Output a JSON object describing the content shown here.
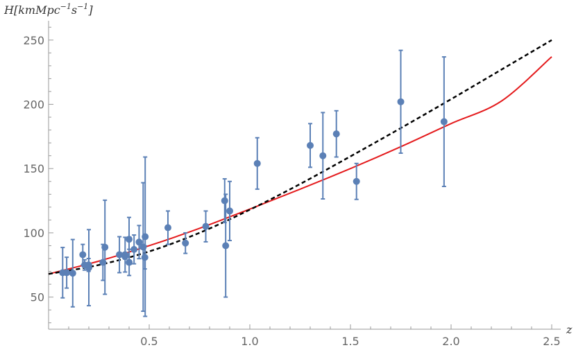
{
  "chart_data": {
    "type": "scatter",
    "ylabel_parts": {
      "base": "H[kmMpc",
      "exp1": "−1",
      "mid": "s",
      "exp2": "−1",
      "close": "]"
    },
    "xlabel": "z",
    "xlim": [
      0,
      2.5
    ],
    "ylim": [
      25,
      265
    ],
    "x_ticks": [
      0.5,
      1.0,
      1.5,
      2.0,
      2.5
    ],
    "x_tick_labels": [
      "0.5",
      "1.0",
      "1.5",
      "2.0",
      "2.5"
    ],
    "y_ticks": [
      50,
      100,
      150,
      200,
      250
    ],
    "y_tick_labels": [
      "50",
      "100",
      "150",
      "200",
      "250"
    ],
    "grid": false,
    "colors": {
      "points": "#5b80b6",
      "red_curve": "#e41a1c",
      "dashed_curve": "#000000",
      "axis": "#9a9a9a"
    },
    "points": [
      {
        "x": 0.07,
        "y": 69,
        "err": 19.6
      },
      {
        "x": 0.09,
        "y": 69,
        "err": 12
      },
      {
        "x": 0.12,
        "y": 68.6,
        "err": 26.2
      },
      {
        "x": 0.17,
        "y": 83,
        "err": 8
      },
      {
        "x": 0.179,
        "y": 75,
        "err": 4
      },
      {
        "x": 0.199,
        "y": 75,
        "err": 5
      },
      {
        "x": 0.2,
        "y": 72.9,
        "err": 29.6
      },
      {
        "x": 0.27,
        "y": 77,
        "err": 14
      },
      {
        "x": 0.28,
        "y": 88.8,
        "err": 36.6
      },
      {
        "x": 0.352,
        "y": 83,
        "err": 14
      },
      {
        "x": 0.38,
        "y": 81.5,
        "err": 1.9
      },
      {
        "x": 0.3802,
        "y": 83,
        "err": 13.5
      },
      {
        "x": 0.4,
        "y": 95,
        "err": 17
      },
      {
        "x": 0.4004,
        "y": 77,
        "err": 10.2
      },
      {
        "x": 0.4247,
        "y": 87.1,
        "err": 11.2
      },
      {
        "x": 0.4497,
        "y": 92.8,
        "err": 12.9
      },
      {
        "x": 0.47,
        "y": 89,
        "err": 50
      },
      {
        "x": 0.4783,
        "y": 80.9,
        "err": 9
      },
      {
        "x": 0.48,
        "y": 97,
        "err": 62
      },
      {
        "x": 0.593,
        "y": 104,
        "err": 13
      },
      {
        "x": 0.68,
        "y": 92,
        "err": 8
      },
      {
        "x": 0.781,
        "y": 105,
        "err": 12
      },
      {
        "x": 0.875,
        "y": 125,
        "err": 17
      },
      {
        "x": 0.88,
        "y": 90,
        "err": 40
      },
      {
        "x": 0.9,
        "y": 117,
        "err": 23
      },
      {
        "x": 1.037,
        "y": 154,
        "err": 20
      },
      {
        "x": 1.3,
        "y": 168,
        "err": 17
      },
      {
        "x": 1.363,
        "y": 160,
        "err": 33.6
      },
      {
        "x": 1.43,
        "y": 177,
        "err": 18
      },
      {
        "x": 1.53,
        "y": 140,
        "err": 14
      },
      {
        "x": 1.75,
        "y": 202,
        "err": 40
      },
      {
        "x": 1.965,
        "y": 186.5,
        "err": 50.4
      }
    ],
    "red_curve": {
      "x": [
        0,
        0.25,
        0.5,
        0.75,
        1.0,
        1.25,
        1.5,
        1.75,
        2.0,
        2.25,
        2.5
      ],
      "y": [
        68,
        78,
        90,
        103.5,
        118.5,
        134,
        150,
        167,
        185,
        202.5,
        237
      ]
    },
    "dashed_curve": {
      "x": [
        0,
        0.25,
        0.5,
        0.75,
        1.0,
        1.25,
        1.5,
        1.75,
        2.0,
        2.25,
        2.5
      ],
      "y": [
        68,
        75,
        85.5,
        100,
        118,
        138,
        159.5,
        181.5,
        204,
        227,
        250
      ]
    }
  }
}
